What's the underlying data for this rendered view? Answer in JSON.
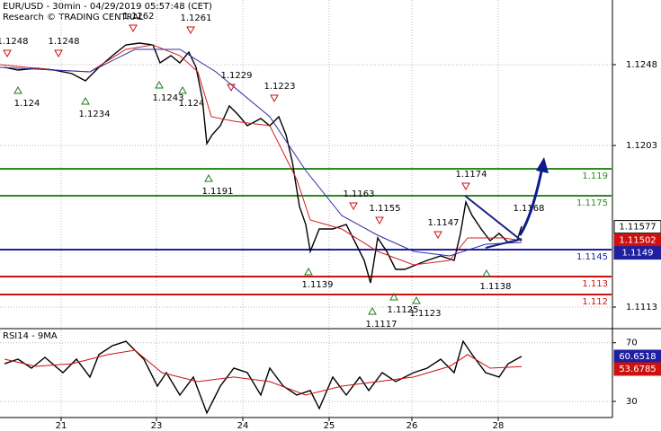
{
  "chart_data": [
    {
      "type": "line",
      "title": "EUR/USD - 30min - 04/29/2019 05:57:48 (CET)",
      "subtitle": "Research © TRADING CENTRAL",
      "xlim": [
        0,
        340
      ],
      "ylim": [
        1.11015,
        1.1284
      ],
      "yticks": [
        1.1113,
        1.1203,
        1.1248
      ],
      "grid": true,
      "series": [
        {
          "color": "#000000",
          "x": [
            2.5,
            10,
            20,
            30,
            40,
            47.5,
            55,
            62.5,
            70,
            77.5,
            85,
            89,
            95,
            100,
            105,
            109,
            112.5,
            115,
            118,
            122.5,
            127.5,
            132.5,
            137.5,
            145,
            150,
            155,
            159,
            162.5,
            166.5,
            170,
            172.5,
            177.5,
            185,
            192.5,
            197.5,
            202.5,
            206,
            210,
            215,
            220,
            225,
            230,
            237.5,
            245,
            252.5,
            256,
            259,
            262.5,
            267.5,
            272.5,
            277.5,
            282.5,
            287.5,
            290
          ],
          "values": [
            1.12465,
            1.1245,
            1.1246,
            1.1245,
            1.1243,
            1.1239,
            1.12465,
            1.1253,
            1.1259,
            1.126,
            1.1259,
            1.1249,
            1.1253,
            1.1249,
            1.1255,
            1.12465,
            1.1229,
            1.1204,
            1.1209,
            1.1214,
            1.1225,
            1.122,
            1.1214,
            1.1218,
            1.1214,
            1.1219,
            1.1209,
            1.1194,
            1.1169,
            1.1159,
            1.1144,
            1.11565,
            1.11565,
            1.1159,
            1.1149,
            1.1139,
            1.11265,
            1.11515,
            1.1144,
            1.1134,
            1.1134,
            1.1136,
            1.1139,
            1.11415,
            1.1139,
            1.1154,
            1.11715,
            1.1164,
            1.11565,
            1.115,
            1.1154,
            1.1149,
            1.115,
            1.1158
          ]
        },
        {
          "color": "#d42020",
          "x": [
            0,
            30,
            50,
            70,
            85,
            100,
            110,
            117.5,
            130,
            150,
            165,
            172.5,
            190,
            210,
            230,
            250,
            260,
            280,
            290
          ],
          "values": [
            1.1248,
            1.1245,
            1.1244,
            1.12565,
            1.1259,
            1.1253,
            1.1244,
            1.1219,
            1.12165,
            1.1214,
            1.1184,
            1.11615,
            1.11565,
            1.1144,
            1.11365,
            1.1139,
            1.11515,
            1.11515,
            1.115
          ]
        },
        {
          "color": "#2b2ba8",
          "x": [
            0,
            50,
            75,
            100,
            120,
            150,
            170,
            190,
            210,
            230,
            250,
            270,
            290
          ],
          "values": [
            1.12465,
            1.1244,
            1.12565,
            1.12565,
            1.1244,
            1.1219,
            1.1189,
            1.1164,
            1.1153,
            1.1144,
            1.11415,
            1.1148,
            1.1149
          ]
        }
      ],
      "levels": [
        {
          "value": 1.119,
          "color": "#2e8b22"
        },
        {
          "value": 1.1175,
          "color": "#2e8b22"
        },
        {
          "value": 1.1145,
          "color": "#1f1fa0"
        },
        {
          "value": 1.113,
          "color": "#cc1111"
        },
        {
          "value": 1.112,
          "color": "#cc1111"
        }
      ],
      "pivots": [
        {
          "x": 4,
          "value": 1.1248,
          "kind": "high"
        },
        {
          "x": 32.5,
          "value": 1.1248,
          "kind": "high"
        },
        {
          "x": 74,
          "value": 1.1262,
          "kind": "high"
        },
        {
          "x": 106,
          "value": 1.1261,
          "kind": "high"
        },
        {
          "x": 128.5,
          "value": 1.1229,
          "kind": "high"
        },
        {
          "x": 152.5,
          "value": 1.1223,
          "kind": "high"
        },
        {
          "x": 196.5,
          "value": 1.1163,
          "kind": "high"
        },
        {
          "x": 211,
          "value": 1.1155,
          "kind": "high"
        },
        {
          "x": 243.5,
          "value": 1.1147,
          "kind": "high"
        },
        {
          "x": 259,
          "value": 1.1174,
          "kind": "high"
        },
        {
          "x": 10,
          "value": 1.124,
          "kind": "low"
        },
        {
          "x": 47.5,
          "value": 1.1234,
          "kind": "low"
        },
        {
          "x": 88.5,
          "value": 1.1243,
          "kind": "low"
        },
        {
          "x": 101.5,
          "value": 1.124,
          "kind": "low"
        },
        {
          "x": 116,
          "value": 1.1191,
          "kind": "low"
        },
        {
          "x": 171.5,
          "value": 1.1139,
          "kind": "low"
        },
        {
          "x": 207,
          "value": 1.1117,
          "kind": "low"
        },
        {
          "x": 219,
          "value": 1.1125,
          "kind": "low"
        },
        {
          "x": 231.5,
          "value": 1.1123,
          "kind": "low"
        },
        {
          "x": 270.5,
          "value": 1.1138,
          "kind": "low"
        }
      ],
      "annotation": {
        "x": 294,
        "value": 1.1168
      },
      "last_values": [
        {
          "value": 1.11577,
          "color": "#000000"
        },
        {
          "value": 1.11502,
          "color": "#cc1111"
        },
        {
          "value": 1.1149,
          "color": "#1f1fa0"
        }
      ]
    },
    {
      "type": "line",
      "title": "RSI14 - 9MA",
      "xlim": [
        0,
        340
      ],
      "ylim": [
        19,
        79
      ],
      "yticks": [
        30,
        70
      ],
      "xticks": [
        {
          "value": 34,
          "label": "21"
        },
        {
          "value": 87,
          "label": "23"
        },
        {
          "value": 135,
          "label": "24"
        },
        {
          "value": 183,
          "label": "25"
        },
        {
          "value": 229,
          "label": "26"
        },
        {
          "value": 277,
          "label": "28"
        }
      ],
      "grid": true,
      "series": [
        {
          "color": "#000000",
          "x": [
            2.5,
            10,
            17.5,
            25,
            35,
            42.5,
            50,
            55,
            62.5,
            70,
            80,
            87.5,
            92.5,
            100,
            107.5,
            115,
            122.5,
            130,
            137.5,
            145,
            150,
            157.5,
            165,
            172.5,
            177.5,
            185,
            192.5,
            200,
            205,
            212.5,
            220,
            230,
            237.5,
            245,
            252.5,
            257.5,
            262.5,
            270,
            277.5,
            282.5,
            290
          ],
          "values": [
            55.7,
            58.8,
            52.7,
            60,
            49.6,
            58.8,
            46.6,
            61.9,
            68,
            71,
            58.8,
            40.4,
            49.6,
            34.3,
            46.6,
            22.1,
            40.4,
            52.7,
            49.6,
            34.3,
            52.7,
            40.4,
            34.3,
            37.4,
            25.1,
            46.6,
            34.3,
            46.6,
            37.4,
            49.6,
            43.5,
            49.6,
            52.7,
            58.8,
            49.6,
            71,
            61.9,
            49.6,
            46.6,
            55.7,
            60.7
          ]
        },
        {
          "color": "#cc1111",
          "x": [
            2.5,
            20,
            40,
            60,
            75,
            90,
            110,
            130,
            150,
            170,
            190,
            210,
            230,
            250,
            260,
            272.5,
            290
          ],
          "values": [
            58.8,
            53.9,
            55.7,
            61.9,
            64.9,
            49.6,
            43.5,
            46.6,
            43.5,
            34.3,
            40.4,
            43.5,
            46.6,
            53.9,
            61.9,
            52.7,
            53.7
          ]
        }
      ],
      "last_values": [
        {
          "value": 60.6518,
          "color": "#1f1fa0"
        },
        {
          "value": 53.6785,
          "color": "#cc1111"
        }
      ]
    }
  ]
}
